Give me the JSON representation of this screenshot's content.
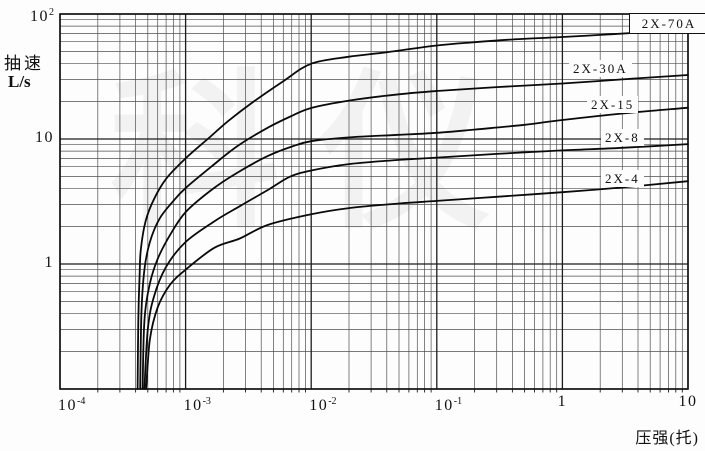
{
  "chart_data": {
    "type": "line",
    "title": "",
    "x_axis": {
      "scale": "log",
      "label": "压强(托)",
      "min": 0.0001,
      "max": 10,
      "ticks": [
        {
          "base": "10",
          "exp": "-4",
          "value": 0.0001
        },
        {
          "base": "10",
          "exp": "-3",
          "value": 0.001
        },
        {
          "base": "10",
          "exp": "-2",
          "value": 0.01
        },
        {
          "base": "10",
          "exp": "-1",
          "value": 0.1
        },
        {
          "base": "1",
          "exp": "",
          "value": 1
        },
        {
          "base": "10",
          "exp": "",
          "value": 10
        }
      ]
    },
    "y_axis": {
      "scale": "log",
      "label_line1": "抽速",
      "label_line2": "L/s",
      "min": 0.1,
      "max": 100,
      "ticks": [
        {
          "base": "10",
          "exp": "2",
          "value": 100
        },
        {
          "base": "10",
          "exp": "",
          "value": 10
        },
        {
          "base": "1",
          "exp": "",
          "value": 1
        }
      ]
    },
    "grid": {
      "style": "full log-log graph paper",
      "on": true
    },
    "legend_position": "labels-on-curves-right",
    "series": [
      {
        "name": "2X-70A",
        "boxed_label": true,
        "points": [
          [
            0.000415,
            0.1
          ],
          [
            0.00042,
            0.35
          ],
          [
            0.00043,
            0.8
          ],
          [
            0.00044,
            1.3
          ],
          [
            0.00048,
            2.2
          ],
          [
            0.00056,
            3.3
          ],
          [
            0.0007,
            4.8
          ],
          [
            0.001,
            7.0
          ],
          [
            0.0015,
            10
          ],
          [
            0.0022,
            14
          ],
          [
            0.0035,
            20
          ],
          [
            0.006,
            29
          ],
          [
            0.01,
            40
          ],
          [
            0.02,
            45.5
          ],
          [
            0.04,
            49.5
          ],
          [
            0.1,
            56
          ],
          [
            0.2,
            59.5
          ],
          [
            0.4,
            62.5
          ],
          [
            1,
            65.5
          ],
          [
            2,
            68
          ],
          [
            4,
            71
          ],
          [
            10,
            75
          ]
        ]
      },
      {
        "name": "2X-30A",
        "boxed_label": false,
        "points": [
          [
            0.000435,
            0.1
          ],
          [
            0.000445,
            0.4
          ],
          [
            0.00047,
            0.9
          ],
          [
            0.00052,
            1.5
          ],
          [
            0.00062,
            2.3
          ],
          [
            0.0008,
            3.2
          ],
          [
            0.001,
            4.05
          ],
          [
            0.0016,
            6.0
          ],
          [
            0.0026,
            8.8
          ],
          [
            0.0045,
            12.3
          ],
          [
            0.007,
            15.3
          ],
          [
            0.01,
            17.7
          ],
          [
            0.02,
            20.3
          ],
          [
            0.05,
            22.8
          ],
          [
            0.1,
            24.2
          ],
          [
            0.3,
            26
          ],
          [
            1,
            27.8
          ],
          [
            3,
            30
          ],
          [
            10,
            32.5
          ]
        ]
      },
      {
        "name": "2X-15",
        "boxed_label": false,
        "points": [
          [
            0.000455,
            0.1
          ],
          [
            0.00047,
            0.35
          ],
          [
            0.00052,
            0.7
          ],
          [
            0.0006,
            1.1
          ],
          [
            0.00075,
            1.7
          ],
          [
            0.001,
            2.6
          ],
          [
            0.0016,
            3.9
          ],
          [
            0.0026,
            5.4
          ],
          [
            0.0045,
            7.3
          ],
          [
            0.007,
            8.7
          ],
          [
            0.01,
            9.6
          ],
          [
            0.02,
            10.3
          ],
          [
            0.05,
            10.8
          ],
          [
            0.1,
            11.2
          ],
          [
            0.2,
            11.9
          ],
          [
            0.5,
            13
          ],
          [
            1,
            14.2
          ],
          [
            3,
            16
          ],
          [
            10,
            17.8
          ]
        ]
      },
      {
        "name": "2X-8",
        "boxed_label": false,
        "points": [
          [
            0.00047,
            0.1
          ],
          [
            0.0005,
            0.3
          ],
          [
            0.00056,
            0.55
          ],
          [
            0.0007,
            0.95
          ],
          [
            0.001,
            1.5
          ],
          [
            0.0017,
            2.2
          ],
          [
            0.0027,
            2.9
          ],
          [
            0.0045,
            3.9
          ],
          [
            0.0068,
            5.0
          ],
          [
            0.01,
            5.6
          ],
          [
            0.02,
            6.3
          ],
          [
            0.05,
            6.8
          ],
          [
            0.1,
            7.1
          ],
          [
            0.3,
            7.6
          ],
          [
            1,
            8.1
          ],
          [
            3,
            8.5
          ],
          [
            10,
            9.1
          ]
        ]
      },
      {
        "name": "2X-4",
        "boxed_label": false,
        "points": [
          [
            0.000485,
            0.1
          ],
          [
            0.00052,
            0.25
          ],
          [
            0.0006,
            0.45
          ],
          [
            0.00075,
            0.68
          ],
          [
            0.001,
            0.9
          ],
          [
            0.0017,
            1.35
          ],
          [
            0.0027,
            1.6
          ],
          [
            0.0045,
            2.05
          ],
          [
            0.01,
            2.5
          ],
          [
            0.02,
            2.8
          ],
          [
            0.05,
            3.05
          ],
          [
            0.1,
            3.2
          ],
          [
            0.3,
            3.45
          ],
          [
            1,
            3.75
          ],
          [
            3,
            4.1
          ],
          [
            10,
            4.6
          ]
        ]
      }
    ]
  },
  "watermark": {
    "text": "科仪"
  },
  "colors": {
    "background": "#fdfdfd",
    "frame": "#111111",
    "grid_major": "#1c1c1c",
    "grid_minor": "#4f4f4f",
    "curve": "#0a0a0a"
  }
}
